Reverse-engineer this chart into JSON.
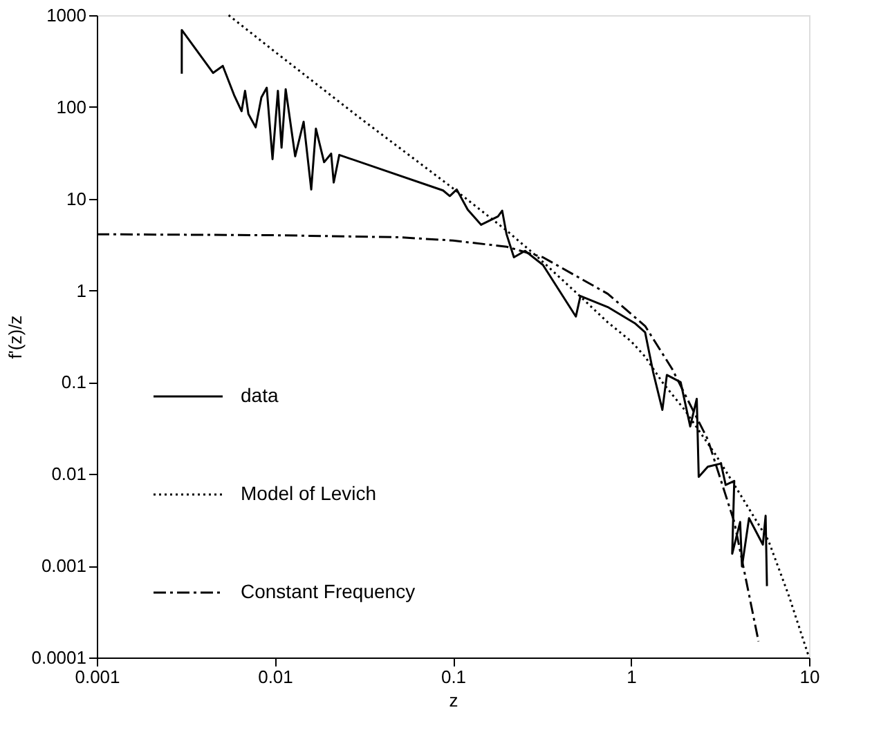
{
  "chart_data": {
    "type": "line",
    "xlabel": "z",
    "ylabel": "f'(z)/z",
    "log": "xy",
    "xlim": [
      0.001,
      10
    ],
    "ylim": [
      0.0001,
      1000
    ],
    "xticks": [
      0.001,
      0.01,
      0.1,
      1,
      10
    ],
    "yticks": [
      0.0001,
      0.001,
      0.01,
      0.1,
      1,
      10,
      100,
      1000
    ],
    "grid": false,
    "legend": "left",
    "marker": "none",
    "series": [
      {
        "name": "data",
        "color": "#000000",
        "line_style": "solid",
        "x": [
          0.003,
          0.003,
          0.0045,
          0.0051,
          0.0059,
          0.0065,
          0.0068,
          0.0071,
          0.0078,
          0.0084,
          0.009,
          0.0097,
          0.0104,
          0.0109,
          0.0115,
          0.013,
          0.0145,
          0.016,
          0.017,
          0.0189,
          0.0207,
          0.0214,
          0.023,
          0.088,
          0.096,
          0.105,
          0.121,
          0.144,
          0.179,
          0.189,
          0.2,
          0.22,
          0.254,
          0.32,
          0.49,
          0.52,
          0.74,
          1.05,
          1.2,
          1.33,
          1.5,
          1.59,
          1.9,
          2.15,
          2.34,
          2.4,
          2.7,
          3.2,
          3.4,
          3.8,
          3.7,
          4.1,
          4.2,
          4.6,
          5.5,
          5.7,
          5.8
        ],
        "values": [
          230,
          690,
          235,
          280,
          135,
          90,
          150,
          84,
          60,
          127,
          162,
          27,
          150,
          36,
          156,
          29,
          69,
          12.6,
          58,
          25,
          31,
          15,
          30,
          12.3,
          10.7,
          12.6,
          7.6,
          5.2,
          6.4,
          7.4,
          4.1,
          2.3,
          2.7,
          1.9,
          0.52,
          0.87,
          0.66,
          0.44,
          0.35,
          0.13,
          0.05,
          0.12,
          0.1,
          0.033,
          0.066,
          0.0093,
          0.012,
          0.013,
          0.0076,
          0.0084,
          0.00135,
          0.003,
          0.00098,
          0.0033,
          0.0017,
          0.0035,
          0.0006
        ]
      },
      {
        "name": "Model of Levich",
        "color": "#000000",
        "line_style": "dotted",
        "x": [
          0.0055,
          0.01,
          0.03,
          0.1,
          0.2,
          0.3,
          0.5,
          0.74,
          1,
          1.2,
          1.5,
          2,
          3,
          4,
          5,
          5.9,
          7.7,
          10
        ],
        "values": [
          1000,
          400,
          76,
          13,
          4.5,
          2.3,
          0.92,
          0.45,
          0.28,
          0.19,
          0.1,
          0.05,
          0.016,
          0.0065,
          0.0032,
          0.0019,
          0.00047,
          0.0001
        ]
      },
      {
        "name": "Constant Frequency",
        "color": "#000000",
        "line_style": "dashdot",
        "x": [
          0.001,
          0.01,
          0.05,
          0.1,
          0.2,
          0.32,
          0.74,
          1.2,
          1.7,
          2.7,
          3.8,
          5.2
        ],
        "values": [
          4.1,
          4.0,
          3.8,
          3.5,
          3.0,
          2.3,
          0.92,
          0.41,
          0.14,
          0.0237,
          0.003,
          0.00015
        ]
      }
    ]
  }
}
